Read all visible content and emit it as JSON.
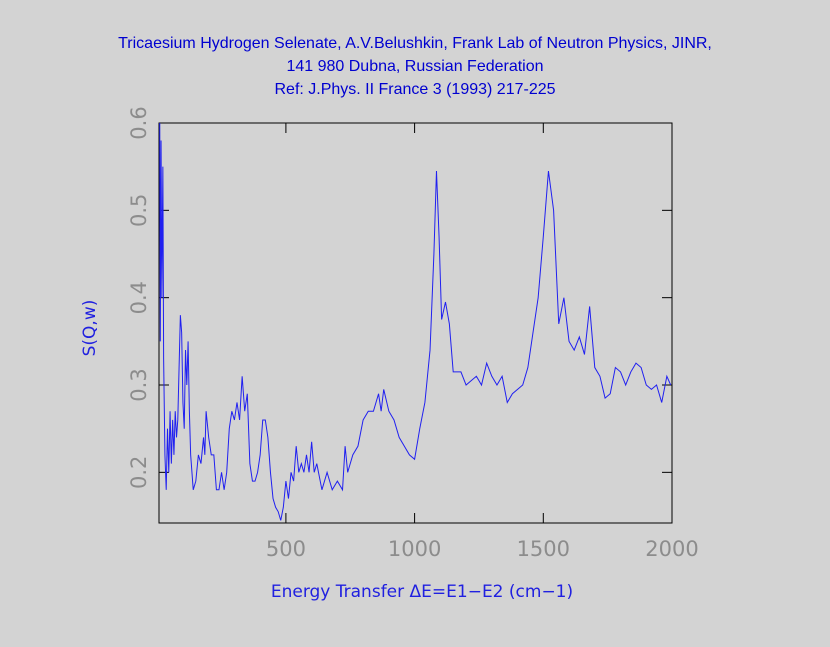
{
  "chart_data": {
    "type": "line",
    "title_lines": [
      "Tricaesium Hydrogen Selenate, A.V.Belushkin, Frank Lab of Neutron Physics, JINR,",
      "141 980 Dubna, Russian Federation",
      "Ref: J.Phys. II France 3 (1993) 217-225"
    ],
    "x_label": "Energy Transfer ΔE=E1−E2 (cm−1)",
    "y_label": "S(Q,w)",
    "xlim": [
      7,
      2000
    ],
    "ylim": [
      0.142,
      0.6
    ],
    "xticks": [
      500,
      1000,
      1500,
      2000
    ],
    "yticks": [
      0.2,
      0.3,
      0.4,
      0.5,
      0.6
    ],
    "series": [
      {
        "color": "#2020f0",
        "x": [
          10,
          12,
          15,
          18,
          22,
          25,
          30,
          35,
          40,
          45,
          50,
          55,
          60,
          65,
          70,
          75,
          80,
          90,
          95,
          100,
          105,
          110,
          115,
          120,
          125,
          130,
          140,
          150,
          160,
          170,
          180,
          185,
          190,
          200,
          210,
          220,
          230,
          240,
          250,
          260,
          270,
          280,
          290,
          300,
          310,
          320,
          330,
          340,
          350,
          360,
          370,
          380,
          390,
          400,
          410,
          420,
          430,
          440,
          450,
          460,
          470,
          480,
          490,
          500,
          510,
          520,
          530,
          540,
          550,
          560,
          570,
          580,
          590,
          600,
          610,
          620,
          640,
          660,
          680,
          700,
          720,
          730,
          740,
          760,
          780,
          800,
          820,
          840,
          860,
          870,
          880,
          900,
          920,
          940,
          960,
          980,
          1000,
          1020,
          1040,
          1060,
          1075,
          1085,
          1095,
          1105,
          1120,
          1135,
          1150,
          1180,
          1200,
          1220,
          1240,
          1260,
          1280,
          1300,
          1320,
          1340,
          1360,
          1380,
          1400,
          1420,
          1440,
          1460,
          1480,
          1500,
          1520,
          1540,
          1560,
          1580,
          1600,
          1620,
          1640,
          1660,
          1680,
          1700,
          1720,
          1740,
          1760,
          1780,
          1800,
          1820,
          1840,
          1860,
          1880,
          1900,
          1920,
          1940,
          1960,
          1980,
          1995
        ],
        "values": [
          0.6,
          0.35,
          0.58,
          0.4,
          0.55,
          0.33,
          0.22,
          0.18,
          0.25,
          0.2,
          0.27,
          0.21,
          0.26,
          0.22,
          0.27,
          0.24,
          0.26,
          0.38,
          0.36,
          0.28,
          0.25,
          0.34,
          0.3,
          0.35,
          0.27,
          0.22,
          0.18,
          0.19,
          0.22,
          0.21,
          0.24,
          0.22,
          0.27,
          0.24,
          0.22,
          0.22,
          0.18,
          0.18,
          0.2,
          0.18,
          0.2,
          0.25,
          0.27,
          0.26,
          0.28,
          0.26,
          0.31,
          0.27,
          0.29,
          0.21,
          0.19,
          0.19,
          0.2,
          0.22,
          0.26,
          0.26,
          0.24,
          0.2,
          0.17,
          0.16,
          0.155,
          0.145,
          0.16,
          0.19,
          0.17,
          0.2,
          0.19,
          0.23,
          0.2,
          0.21,
          0.2,
          0.22,
          0.2,
          0.235,
          0.2,
          0.21,
          0.18,
          0.2,
          0.18,
          0.19,
          0.18,
          0.23,
          0.2,
          0.22,
          0.23,
          0.26,
          0.27,
          0.27,
          0.29,
          0.27,
          0.295,
          0.27,
          0.26,
          0.24,
          0.23,
          0.22,
          0.215,
          0.25,
          0.28,
          0.34,
          0.45,
          0.545,
          0.47,
          0.375,
          0.395,
          0.37,
          0.315,
          0.315,
          0.3,
          0.305,
          0.31,
          0.3,
          0.325,
          0.31,
          0.3,
          0.31,
          0.28,
          0.29,
          0.295,
          0.3,
          0.32,
          0.36,
          0.4,
          0.47,
          0.545,
          0.5,
          0.37,
          0.4,
          0.35,
          0.34,
          0.355,
          0.335,
          0.39,
          0.32,
          0.31,
          0.285,
          0.29,
          0.32,
          0.315,
          0.3,
          0.315,
          0.325,
          0.32,
          0.3,
          0.295,
          0.3,
          0.28,
          0.31,
          0.3
        ]
      }
    ]
  }
}
